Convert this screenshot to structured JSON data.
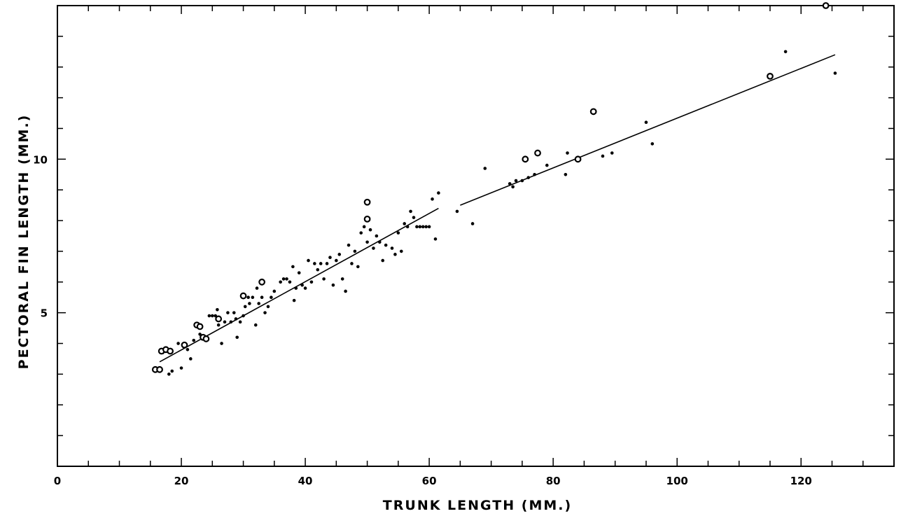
{
  "chart_data": {
    "type": "scatter",
    "title": "",
    "xlabel": "TRUNK LENGTH (MM.)",
    "ylabel": "PECTORAL FIN LENGTH (MM.)",
    "xlim": [
      0,
      135
    ],
    "ylim": [
      0,
      15
    ],
    "x_ticks": [
      0,
      20,
      40,
      60,
      80,
      100,
      120
    ],
    "y_ticks": [
      5,
      10
    ],
    "x_tick_labels": [
      "0",
      "20",
      "40",
      "60",
      "80",
      "100",
      "120"
    ],
    "y_tick_labels": [
      "5",
      "10"
    ],
    "grid": false,
    "series": [
      {
        "marker": "dot",
        "points": [
          [
            16.5,
            3.1
          ],
          [
            17,
            3.7
          ],
          [
            18,
            3.0
          ],
          [
            18.5,
            3.1
          ],
          [
            19.5,
            4.0
          ],
          [
            20,
            3.2
          ],
          [
            21,
            3.8
          ],
          [
            21.5,
            3.5
          ],
          [
            22,
            4.1
          ],
          [
            23,
            4.3
          ],
          [
            24,
            4.2
          ],
          [
            24.5,
            4.9
          ],
          [
            25,
            4.9
          ],
          [
            25.5,
            4.9
          ],
          [
            25.8,
            5.1
          ],
          [
            26,
            4.6
          ],
          [
            26.5,
            4.0
          ],
          [
            27,
            4.7
          ],
          [
            27.5,
            5.0
          ],
          [
            28,
            4.7
          ],
          [
            28.5,
            5.0
          ],
          [
            28.8,
            4.8
          ],
          [
            29,
            4.2
          ],
          [
            29.5,
            4.7
          ],
          [
            30,
            4.9
          ],
          [
            30.3,
            5.2
          ],
          [
            30.8,
            5.5
          ],
          [
            31,
            5.3
          ],
          [
            31.5,
            5.5
          ],
          [
            32,
            4.6
          ],
          [
            32.2,
            5.8
          ],
          [
            32.5,
            5.3
          ],
          [
            33,
            5.5
          ],
          [
            33.5,
            5.0
          ],
          [
            34,
            5.2
          ],
          [
            34.5,
            5.5
          ],
          [
            35,
            5.7
          ],
          [
            36,
            6.0
          ],
          [
            36.5,
            6.1
          ],
          [
            37,
            6.1
          ],
          [
            37.5,
            6.0
          ],
          [
            38,
            6.5
          ],
          [
            38.2,
            5.4
          ],
          [
            38.5,
            5.8
          ],
          [
            39,
            6.3
          ],
          [
            39.5,
            5.9
          ],
          [
            40,
            5.8
          ],
          [
            40.5,
            6.7
          ],
          [
            41,
            6.0
          ],
          [
            41.5,
            6.6
          ],
          [
            42,
            6.4
          ],
          [
            42.5,
            6.6
          ],
          [
            43,
            6.1
          ],
          [
            43.5,
            6.6
          ],
          [
            44,
            6.8
          ],
          [
            44.5,
            5.9
          ],
          [
            45,
            6.7
          ],
          [
            45.5,
            6.9
          ],
          [
            46,
            6.1
          ],
          [
            46.5,
            5.7
          ],
          [
            47,
            7.2
          ],
          [
            47.5,
            6.6
          ],
          [
            48,
            7.0
          ],
          [
            48.5,
            6.5
          ],
          [
            49,
            7.6
          ],
          [
            49.5,
            7.8
          ],
          [
            50,
            7.3
          ],
          [
            50.5,
            7.7
          ],
          [
            51,
            7.1
          ],
          [
            51.5,
            7.5
          ],
          [
            52,
            7.3
          ],
          [
            52.5,
            6.7
          ],
          [
            53,
            7.2
          ],
          [
            54,
            7.1
          ],
          [
            54.5,
            6.9
          ],
          [
            55,
            7.6
          ],
          [
            55.5,
            7.0
          ],
          [
            56,
            7.9
          ],
          [
            56.5,
            7.8
          ],
          [
            57,
            8.3
          ],
          [
            57.5,
            8.1
          ],
          [
            58,
            7.8
          ],
          [
            58.5,
            7.8
          ],
          [
            59,
            7.8
          ],
          [
            59.5,
            7.8
          ],
          [
            60,
            7.8
          ],
          [
            60.5,
            8.7
          ],
          [
            61,
            7.4
          ],
          [
            61.5,
            8.9
          ],
          [
            64.5,
            8.3
          ],
          [
            67,
            7.9
          ],
          [
            69,
            9.7
          ],
          [
            73,
            9.2
          ],
          [
            73.5,
            9.1
          ],
          [
            74,
            9.3
          ],
          [
            75,
            9.3
          ],
          [
            76,
            9.4
          ],
          [
            77,
            9.5
          ],
          [
            79,
            9.8
          ],
          [
            82,
            9.5
          ],
          [
            82.3,
            10.2
          ],
          [
            88,
            10.1
          ],
          [
            89.5,
            10.2
          ],
          [
            95,
            11.2
          ],
          [
            96,
            10.5
          ],
          [
            117.5,
            13.5
          ],
          [
            125.5,
            12.8
          ]
        ]
      },
      {
        "marker": "circle",
        "points": [
          [
            15.8,
            3.15
          ],
          [
            16.5,
            3.15
          ],
          [
            16.8,
            3.75
          ],
          [
            17.5,
            3.8
          ],
          [
            18.2,
            3.75
          ],
          [
            20.5,
            3.95
          ],
          [
            22.5,
            4.6
          ],
          [
            23,
            4.55
          ],
          [
            23.5,
            4.2
          ],
          [
            24,
            4.15
          ],
          [
            26,
            4.8
          ],
          [
            30,
            5.55
          ],
          [
            33,
            6.0
          ],
          [
            50,
            8.6
          ],
          [
            50,
            8.05
          ],
          [
            75.5,
            10.0
          ],
          [
            77.5,
            10.2
          ],
          [
            84,
            10.0
          ],
          [
            86.5,
            11.55
          ],
          [
            115,
            12.7
          ],
          [
            124,
            15.0
          ]
        ]
      }
    ],
    "fit_lines": [
      {
        "x": [
          16.5,
          61.5
        ],
        "y": [
          3.4,
          8.4
        ]
      },
      {
        "x": [
          65,
          125.5
        ],
        "y": [
          8.5,
          13.4
        ]
      }
    ]
  }
}
